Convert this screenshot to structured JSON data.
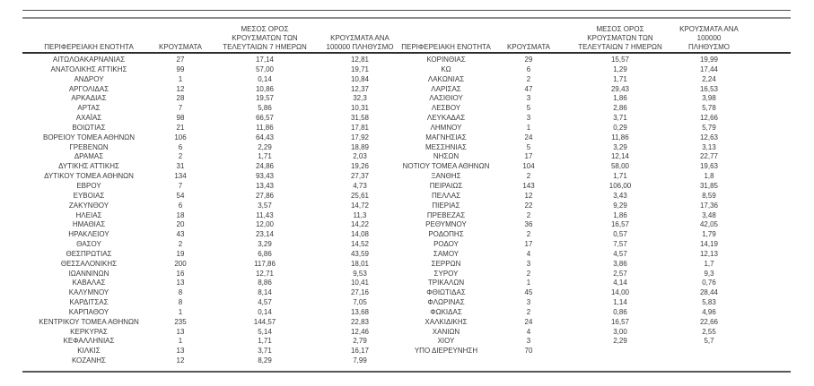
{
  "columns": {
    "region": "ΠΕΡΙΦΕΡΕΙΑΚΗ ΕΝΟΤΗΤΑ",
    "cases": "ΚΡΟΥΣΜΑΤΑ",
    "avg7": "ΜΕΣΟΣ ΟΡΟΣ\nΚΡΟΥΣΜΑΤΩΝ ΤΩΝ\nΤΕΛΕΥΤΑΙΩΝ 7 ΗΜΕΡΩΝ",
    "per100k": "ΚΡΟΥΣΜΑΤΑ ΑΝΑ\n100000 ΠΛΗΘΥΣΜΟ"
  },
  "left_rows": [
    [
      "ΑΙΤΩΛΟΑΚΑΡΝΑΝΙΑΣ",
      "27",
      "17,14",
      "12,81"
    ],
    [
      "ΑΝΑΤΟΛΙΚΗΣ ΑΤΤΙΚΗΣ",
      "99",
      "57,00",
      "19,71"
    ],
    [
      "ΑΝΔΡΟΥ",
      "1",
      "0,14",
      "10,84"
    ],
    [
      "ΑΡΓΟΛΙΔΑΣ",
      "12",
      "10,86",
      "12,37"
    ],
    [
      "ΑΡΚΑΔΙΑΣ",
      "28",
      "19,57",
      "32,3"
    ],
    [
      "ΑΡΤΑΣ",
      "7",
      "5,86",
      "10,31"
    ],
    [
      "ΑΧΑΪΑΣ",
      "98",
      "66,57",
      "31,58"
    ],
    [
      "ΒΟΙΩΤΙΑΣ",
      "21",
      "11,86",
      "17,81"
    ],
    [
      "ΒΟΡΕΙΟΥ ΤΟΜΕΑ ΑΘΗΝΩΝ",
      "106",
      "64,43",
      "17,92"
    ],
    [
      "ΓΡΕΒΕΝΩΝ",
      "6",
      "2,29",
      "18,89"
    ],
    [
      "ΔΡΑΜΑΣ",
      "2",
      "1,71",
      "2,03"
    ],
    [
      "ΔΥΤΙΚΗΣ ΑΤΤΙΚΗΣ",
      "31",
      "24,86",
      "19,26"
    ],
    [
      "ΔΥΤΙΚΟΥ ΤΟΜΕΑ ΑΘΗΝΩΝ",
      "134",
      "93,43",
      "27,37"
    ],
    [
      "ΕΒΡΟΥ",
      "7",
      "13,43",
      "4,73"
    ],
    [
      "ΕΥΒΟΙΑΣ",
      "54",
      "27,86",
      "25,61"
    ],
    [
      "ΖΑΚΥΝΘΟΥ",
      "6",
      "3,57",
      "14,72"
    ],
    [
      "ΗΛΕΙΑΣ",
      "18",
      "11,43",
      "11,3"
    ],
    [
      "ΗΜΑΘΙΑΣ",
      "20",
      "12,00",
      "14,22"
    ],
    [
      "ΗΡΑΚΛΕΙΟΥ",
      "43",
      "23,14",
      "14,08"
    ],
    [
      "ΘΑΣΟΥ",
      "2",
      "3,29",
      "14,52"
    ],
    [
      "ΘΕΣΠΡΩΤΙΑΣ",
      "19",
      "6,86",
      "43,59"
    ],
    [
      "ΘΕΣΣΑΛΟΝΙΚΗΣ",
      "200",
      "117,86",
      "18,01"
    ],
    [
      "ΙΩΑΝΝΙΝΩΝ",
      "16",
      "12,71",
      "9,53"
    ],
    [
      "ΚΑΒΑΛΑΣ",
      "13",
      "8,86",
      "10,41"
    ],
    [
      "ΚΑΛΥΜΝΟΥ",
      "8",
      "8,14",
      "27,16"
    ],
    [
      "ΚΑΡΔΙΤΣΑΣ",
      "8",
      "4,57",
      "7,05"
    ],
    [
      "ΚΑΡΠΑΘΟΥ",
      "1",
      "0,14",
      "13,68"
    ],
    [
      "ΚΕΝΤΡΙΚΟΥ ΤΟΜΕΑ ΑΘΗΝΩΝ",
      "235",
      "144,57",
      "22,83"
    ],
    [
      "ΚΕΡΚΥΡΑΣ",
      "13",
      "5,14",
      "12,46"
    ],
    [
      "ΚΕΦΑΛΛΗΝΙΑΣ",
      "1",
      "1,71",
      "2,79"
    ],
    [
      "ΚΙΛΚΙΣ",
      "13",
      "3,71",
      "16,17"
    ],
    [
      "ΚΟΖΑΝΗΣ",
      "12",
      "8,29",
      "7,99"
    ]
  ],
  "right_rows": [
    [
      "ΚΟΡΙΝΘΙΑΣ",
      "29",
      "15,57",
      "19,99"
    ],
    [
      "ΚΩ",
      "6",
      "1,29",
      "17,44"
    ],
    [
      "ΛΑΚΩΝΙΑΣ",
      "2",
      "1,71",
      "2,24"
    ],
    [
      "ΛΑΡΙΣΑΣ",
      "47",
      "29,43",
      "16,53"
    ],
    [
      "ΛΑΣΙΘΙΟΥ",
      "3",
      "1,86",
      "3,98"
    ],
    [
      "ΛΕΣΒΟΥ",
      "5",
      "2,86",
      "5,78"
    ],
    [
      "ΛΕΥΚΑΔΑΣ",
      "3",
      "3,71",
      "12,66"
    ],
    [
      "ΛΗΜΝΟΥ",
      "1",
      "0,29",
      "5,79"
    ],
    [
      "ΜΑΓΝΗΣΙΑΣ",
      "24",
      "11,86",
      "12,63"
    ],
    [
      "ΜΕΣΣΗΝΙΑΣ",
      "5",
      "3,29",
      "3,13"
    ],
    [
      "ΝΗΣΩΝ",
      "17",
      "12,14",
      "22,77"
    ],
    [
      "ΝΟΤΙΟΥ ΤΟΜΕΑ ΑΘΗΝΩΝ",
      "104",
      "58,00",
      "19,63"
    ],
    [
      "ΞΑΝΘΗΣ",
      "2",
      "1,71",
      "1,8"
    ],
    [
      "ΠΕΙΡΑΙΩΣ",
      "143",
      "106,00",
      "31,85"
    ],
    [
      "ΠΕΛΛΑΣ",
      "12",
      "3,43",
      "8,59"
    ],
    [
      "ΠΙΕΡΙΑΣ",
      "22",
      "9,29",
      "17,36"
    ],
    [
      "ΠΡΕΒΕΖΑΣ",
      "2",
      "1,86",
      "3,48"
    ],
    [
      "ΡΕΘΥΜΝΟΥ",
      "36",
      "16,57",
      "42,05"
    ],
    [
      "ΡΟΔΟΠΗΣ",
      "2",
      "0,57",
      "1,79"
    ],
    [
      "ΡΟΔΟΥ",
      "17",
      "7,57",
      "14,19"
    ],
    [
      "ΣΑΜΟΥ",
      "4",
      "4,57",
      "12,13"
    ],
    [
      "ΣΕΡΡΩΝ",
      "3",
      "3,86",
      "1,7"
    ],
    [
      "ΣΥΡΟΥ",
      "2",
      "2,57",
      "9,3"
    ],
    [
      "ΤΡΙΚΑΛΩΝ",
      "1",
      "4,14",
      "0,76"
    ],
    [
      "ΦΘΙΩΤΙΔΑΣ",
      "45",
      "14,00",
      "28,44"
    ],
    [
      "ΦΛΩΡΙΝΑΣ",
      "3",
      "1,14",
      "5,83"
    ],
    [
      "ΦΩΚΙΔΑΣ",
      "2",
      "0,86",
      "4,96"
    ],
    [
      "ΧΑΛΚΙΔΙΚΗΣ",
      "24",
      "16,57",
      "22,66"
    ],
    [
      "ΧΑΝΙΩΝ",
      "4",
      "3,00",
      "2,55"
    ],
    [
      "ΧΙΟΥ",
      "3",
      "2,29",
      "5,7"
    ],
    [
      "ΥΠΟ ΔΙΕΡΕΥΝΗΣΗ",
      "70",
      "",
      ""
    ]
  ]
}
